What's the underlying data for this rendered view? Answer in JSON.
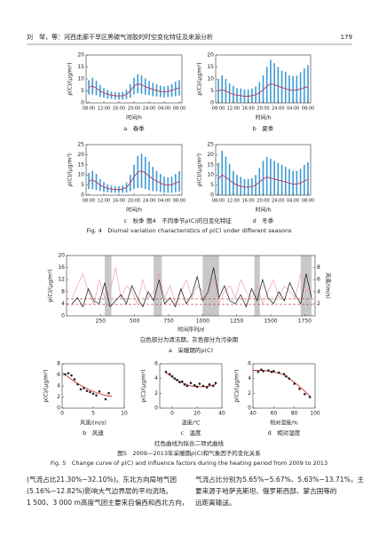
{
  "header": {
    "left": "刘　琴，等：河西走廊干旱区黑碳气溶胶的时空变化特征及来源分析",
    "page": "179"
  },
  "figure4": {
    "caption_cn": "图4　不同季节ρ(C)的日变化特征",
    "caption_en": "Fig. 4　Diurnal variation characteristics of ρ(C) under different seasons"
  },
  "figure5": {
    "note_a": "白色部分为清洁期，灰色部分为污染期",
    "note_fit": "红色曲线为拟合二项式曲线",
    "caption_cn": "图5　2009—2013年采暖期ρ(C)和气象因子的变化关系",
    "caption_en": "Fig. 5　Change curve of ρ(C) and influence factors during the heating period from 2009 to 2013"
  },
  "body": {
    "left": [
      "(气流占比21.30%~32.10%)。东北方向局地气团",
      "(5.16%~12.82%)影响大气边界层的平均流场。",
      "1 500、3 000 m高度气团主要来自偏西和西北方向，"
    ],
    "right": [
      "气流占比分别为5.65%~5.67%、5.63%~13.71%，主",
      "要来源于哈萨克斯坦、俄罗斯西部、蒙古国等的",
      "远距离输送。"
    ]
  },
  "chart_data": [
    {
      "type": "line",
      "subtitle": "a　春季",
      "ylabel": "ρ(C)/(μg/m³)",
      "xlabel": "时间/h",
      "categories": [
        "08:00",
        null,
        null,
        null,
        "12:00",
        null,
        null,
        null,
        "16:00",
        null,
        null,
        null,
        "20:00",
        null,
        null,
        null,
        "24:00",
        null,
        null,
        null,
        "04:00",
        null,
        null,
        null,
        "08:00"
      ],
      "values": [
        6.5,
        7,
        6.2,
        5,
        4.2,
        3.6,
        3.2,
        3,
        2.9,
        3,
        3.6,
        5,
        7,
        8,
        7.6,
        6.8,
        6.2,
        5.6,
        5.2,
        4.8,
        4.6,
        4.8,
        5.2,
        5.8,
        6.3
      ],
      "errors": [
        3,
        3.5,
        3,
        2.5,
        2,
        1.8,
        1.5,
        1.5,
        1.5,
        1.6,
        2,
        2.8,
        3.5,
        4,
        3.8,
        3.4,
        3,
        2.8,
        2.6,
        2.4,
        2.3,
        2.4,
        2.6,
        3,
        3.2
      ],
      "color": "#b4466a",
      "error_color": "#3d9bd3",
      "ylim": [
        0,
        20
      ],
      "yticks": [
        0,
        5,
        10,
        15,
        20
      ]
    },
    {
      "type": "line",
      "subtitle": "b　夏季",
      "ylabel": "ρ(C)/(μg/m³)",
      "xlabel": "时间/h",
      "categories": [
        "08:00",
        null,
        null,
        null,
        "12:00",
        null,
        null,
        null,
        "16:00",
        null,
        null,
        null,
        "20:00",
        null,
        null,
        null,
        "24:00",
        null,
        null,
        null,
        "04:00",
        null,
        null,
        null,
        "08:00"
      ],
      "values": [
        5,
        5.5,
        5,
        4.2,
        3.6,
        3.2,
        3,
        2.8,
        2.8,
        3,
        3.4,
        4.2,
        5.5,
        7,
        8,
        7.6,
        7,
        6.4,
        6,
        5.5,
        5.2,
        5.4,
        5.8,
        6.4,
        6.8
      ],
      "errors": [
        5,
        6,
        5,
        4,
        3.5,
        3,
        3,
        2.8,
        2.8,
        3,
        3.5,
        4.5,
        6,
        8,
        10,
        9,
        8,
        7,
        7,
        6,
        6,
        6,
        7,
        8,
        9
      ],
      "color": "#b4466a",
      "error_color": "#3d9bd3",
      "ylim": [
        0,
        20
      ],
      "yticks": [
        0,
        5,
        10,
        15,
        20
      ]
    },
    {
      "type": "line",
      "subtitle": "c　秋季",
      "ylabel": "ρ(C)/(μg/m³)",
      "xlabel": "时间/h",
      "categories": [
        "08:00",
        null,
        null,
        null,
        "12:00",
        null,
        null,
        null,
        "16:00",
        null,
        null,
        null,
        "20:00",
        null,
        null,
        null,
        "24:00",
        null,
        null,
        null,
        "04:00",
        null,
        null,
        null,
        "08:00"
      ],
      "values": [
        7,
        7.5,
        6.5,
        5,
        4,
        3.4,
        3,
        2.8,
        2.8,
        3,
        3.8,
        6,
        9,
        11.5,
        12,
        11,
        9.5,
        8,
        7,
        6,
        5.2,
        5,
        5.2,
        6,
        6.8
      ],
      "errors": [
        4,
        4.5,
        4,
        3,
        2.5,
        2,
        1.8,
        1.6,
        1.6,
        1.8,
        2.5,
        4,
        6,
        8,
        8.5,
        8,
        7,
        6,
        5,
        4.5,
        4,
        3.8,
        4,
        4.5,
        5
      ],
      "color": "#b4466a",
      "error_color": "#3d9bd3",
      "ylim": [
        0,
        25
      ],
      "yticks": [
        0,
        5,
        10,
        15,
        20,
        25
      ]
    },
    {
      "type": "line",
      "subtitle": "d　冬季",
      "ylabel": "ρ(C)/(μg/m³)",
      "xlabel": "时间/h",
      "categories": [
        "08:00",
        null,
        null,
        null,
        "12:00",
        null,
        null,
        null,
        "16:00",
        null,
        null,
        null,
        "20:00",
        null,
        null,
        null,
        "24:00",
        null,
        null,
        null,
        "04:00",
        null,
        null,
        null,
        "08:00"
      ],
      "values": [
        8,
        10,
        9,
        7.5,
        6,
        5,
        4.5,
        4,
        4,
        4.2,
        5,
        6.5,
        8,
        9,
        8.5,
        8,
        7.5,
        7,
        6.5,
        6,
        5.5,
        5.5,
        6,
        7,
        7.8
      ],
      "errors": [
        8,
        12,
        10,
        8,
        6,
        5,
        4.5,
        4,
        4,
        4.2,
        5,
        7,
        9,
        10,
        9.5,
        9,
        8.5,
        8,
        7.5,
        7,
        6.5,
        6.5,
        7,
        8,
        8.5
      ],
      "color": "#b4466a",
      "error_color": "#3d9bd3",
      "ylim": [
        0,
        25
      ],
      "yticks": [
        0,
        5,
        10,
        15,
        20,
        25
      ]
    },
    {
      "type": "timeseries",
      "subtitle": "a　采暖期的ρ(C)",
      "ylabel": "ρ(C)/(μg/m³)",
      "y2label": "风速/(m/s)",
      "xlabel": "时间序列/d",
      "x": [
        40,
        80,
        120,
        160,
        200,
        240,
        280,
        320,
        360,
        400,
        440,
        480,
        520,
        560,
        600,
        640,
        680,
        720,
        760,
        800,
        840,
        880,
        920,
        960,
        1000,
        1040,
        1080,
        1120,
        1160,
        1200,
        1240,
        1280,
        1320,
        1360,
        1400,
        1440,
        1480,
        1520,
        1560,
        1600,
        1640,
        1680,
        1720,
        1760,
        1800
      ],
      "series": [
        {
          "color": "#111111",
          "values": [
            4,
            6,
            3,
            9,
            5,
            4,
            11,
            3,
            5,
            7,
            4,
            10,
            6,
            3,
            8,
            5,
            12,
            4,
            6,
            3,
            9,
            4,
            7,
            13,
            5,
            8,
            16,
            6,
            10,
            5,
            4,
            7,
            3,
            9,
            5,
            12,
            6,
            4,
            8,
            5,
            11,
            7,
            4,
            14,
            6
          ]
        },
        {
          "color": "#f0a0a8",
          "axis": "y2",
          "values": [
            3,
            5,
            7,
            4,
            2,
            6,
            3,
            4,
            8,
            3,
            5,
            4,
            2,
            6,
            3,
            4,
            7,
            3,
            5,
            2,
            4,
            6,
            3,
            5,
            4,
            3,
            6,
            2,
            4,
            5,
            3,
            6,
            4,
            3,
            5,
            2,
            4,
            6,
            3,
            5,
            4,
            3,
            7,
            4,
            5
          ]
        }
      ],
      "polluted_periods": [
        [
          280,
          330
        ],
        [
          640,
          700
        ],
        [
          1000,
          1120
        ],
        [
          1380,
          1420
        ],
        [
          1720,
          1800
        ]
      ],
      "period_color": "#c8c8c8",
      "hlines": [
        3.8,
        5.6
      ],
      "hline_color": "#b03030",
      "xlim": [
        0,
        1826
      ],
      "xticks": [
        250,
        500,
        750,
        1000,
        1250,
        1500,
        1750
      ],
      "ylim": [
        0,
        20
      ],
      "yticks": [
        0,
        4,
        8,
        12,
        16,
        20
      ],
      "y2lim": [
        0,
        10
      ],
      "y2ticks": [
        2,
        4,
        6,
        8
      ]
    },
    {
      "type": "scatter",
      "subtitle": "b　风速",
      "ylabel": "ρ(C)/(μg/m³)",
      "xlabel": "风速/(m/s)",
      "x": [
        0.5,
        1,
        1.5,
        2,
        2.5,
        3,
        3.5,
        4,
        4.5,
        5,
        5.5,
        6,
        7,
        7.5
      ],
      "values": [
        6.1,
        6.3,
        5.9,
        5.2,
        4.3,
        3.4,
        3.6,
        3.1,
        2.9,
        2.6,
        2.3,
        3.0,
        1.6,
        2.7
      ],
      "color": "#222222",
      "fit": {
        "color": "#d03030",
        "x": [
          0,
          1,
          2,
          3,
          4,
          5,
          6,
          7,
          8
        ],
        "values": [
          6.4,
          5.6,
          4.8,
          4.1,
          3.5,
          3.0,
          2.6,
          2.3,
          2.1
        ]
      },
      "xlim": [
        0,
        10
      ],
      "xticks": [
        0,
        5,
        10
      ],
      "ylim": [
        0,
        8
      ],
      "yticks": [
        0,
        2,
        4,
        6,
        8
      ]
    },
    {
      "type": "scatter",
      "subtitle": "c　温度",
      "ylabel": "ρ(C)/(μg/m³)",
      "xlabel": "温度/℃",
      "x": [
        -5,
        -2,
        0,
        2,
        4,
        6,
        8,
        10,
        12,
        15,
        18,
        20,
        22,
        25,
        28,
        30,
        33,
        35
      ],
      "values": [
        4.9,
        4.6,
        4.3,
        4.0,
        3.8,
        3.5,
        3.6,
        3.2,
        3.0,
        3.4,
        3.1,
        2.9,
        3.3,
        3.0,
        2.8,
        3.2,
        3.0,
        3.4
      ],
      "color": "#222222",
      "fit": {
        "color": "#d03030",
        "x": [
          -5,
          0,
          5,
          10,
          15,
          20,
          25,
          30,
          35
        ],
        "values": [
          4.8,
          4.2,
          3.7,
          3.3,
          3.0,
          2.9,
          2.9,
          3.0,
          3.2
        ]
      },
      "xlim": [
        -10,
        40
      ],
      "xticks": [
        0,
        20,
        40
      ],
      "ylim": [
        0,
        6
      ],
      "yticks": [
        0,
        2,
        4,
        6
      ]
    },
    {
      "type": "scatter",
      "subtitle": "d　相对湿度",
      "ylabel": "ρ(C)/(μg/m³)",
      "xlabel": "相对湿度/%",
      "x": [
        45,
        48,
        50,
        55,
        58,
        60,
        65,
        70,
        72,
        75,
        80,
        85,
        90,
        95
      ],
      "values": [
        4.9,
        5.2,
        5.0,
        5.1,
        4.9,
        5.0,
        4.8,
        4.6,
        4.3,
        4.0,
        3.3,
        2.6,
        1.9,
        1.5
      ],
      "color": "#222222",
      "fit": {
        "color": "#d03030",
        "x": [
          40,
          50,
          60,
          70,
          80,
          90,
          95
        ],
        "values": [
          5.1,
          5.1,
          4.9,
          4.5,
          3.5,
          2.3,
          1.6
        ]
      },
      "xlim": [
        40,
        100
      ],
      "xticks": [
        40,
        60,
        80,
        100
      ],
      "ylim": [
        0,
        6
      ],
      "yticks": [
        0,
        2,
        4,
        6
      ]
    }
  ]
}
